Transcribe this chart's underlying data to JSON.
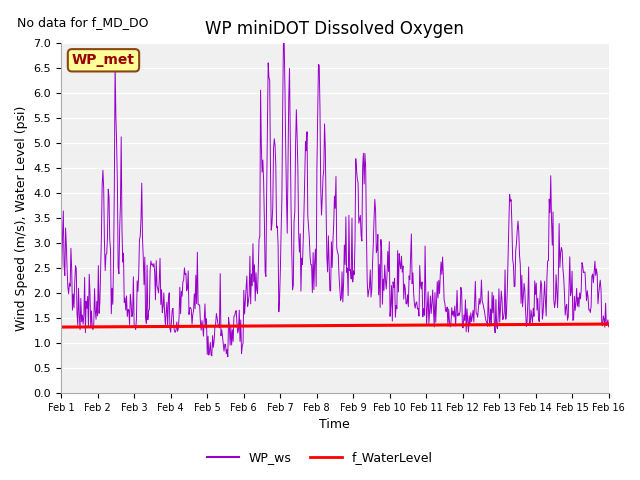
{
  "title": "WP miniDOT Dissolved Oxygen",
  "no_data_text": "No data for f_MD_DO",
  "legend_box_label": "WP_met",
  "ylabel": "Wind Speed (m/s), Water Level (psi)",
  "xlabel": "Time",
  "ylim": [
    0.0,
    7.0
  ],
  "yticks": [
    0.0,
    0.5,
    1.0,
    1.5,
    2.0,
    2.5,
    3.0,
    3.5,
    4.0,
    4.5,
    5.0,
    5.5,
    6.0,
    6.5,
    7.0
  ],
  "xtick_labels": [
    "Feb 1",
    "Feb 2",
    "Feb 3",
    "Feb 4",
    "Feb 5",
    "Feb 6",
    "Feb 7",
    "Feb 8",
    "Feb 9",
    "Feb 10",
    "Feb 11",
    "Feb 12",
    "Feb 13",
    "Feb 14",
    "Feb 15",
    "Feb 16"
  ],
  "water_level_value": 1.32,
  "water_level_slope": 0.06,
  "water_level_color": "#ff0000",
  "ws_color": "#9900cc",
  "bg_color": "#e8e8e8",
  "plot_bg_color": "#f0f0f0",
  "title_fontsize": 12,
  "axis_label_fontsize": 9,
  "tick_fontsize": 8,
  "legend_fontsize": 9,
  "no_data_fontsize": 9,
  "seed": 42,
  "figwidth": 6.4,
  "figheight": 4.8,
  "dpi": 100
}
